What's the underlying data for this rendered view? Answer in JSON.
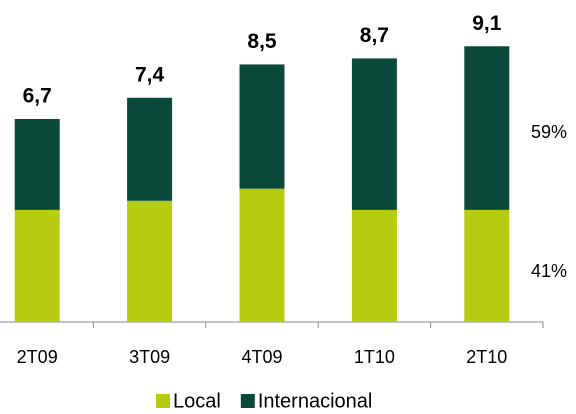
{
  "chart_data": {
    "type": "stacked_bar",
    "categories": [
      "2T09",
      "3T09",
      "4T09",
      "1T10",
      "2T10"
    ],
    "series": [
      {
        "name": "Local",
        "color": "#b5cc10",
        "values": [
          3.7,
          4.0,
          4.4,
          3.7,
          3.7
        ]
      },
      {
        "name": "Internacional",
        "color": "#0b4a3b",
        "values": [
          3.0,
          3.4,
          4.1,
          5.0,
          5.4
        ]
      }
    ],
    "totals": [
      6.7,
      7.4,
      8.5,
      8.7,
      9.1
    ],
    "total_labels": [
      "6,7",
      "7,4",
      "8,5",
      "8,7",
      "9,1"
    ],
    "annotations": [
      "59%",
      "41%"
    ],
    "legend": "bottom"
  }
}
